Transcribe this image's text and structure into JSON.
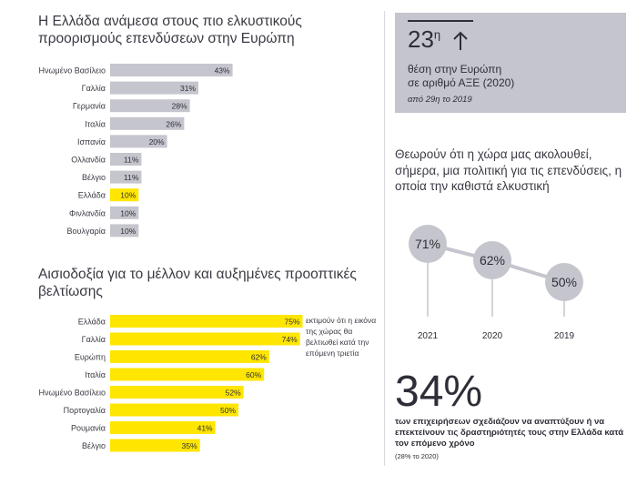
{
  "left_top": {
    "title_line1": "Η Ελλάδα ανάμεσα στους πιο ελκυστικούς",
    "title_line2": "προορισμούς επενδύσεων στην Ευρώπη"
  },
  "left_bottom": {
    "title_line1": "Αισιοδοξία για το μέλλον και αυξημένες προοπτικές",
    "title_line2": "βελτίωσης",
    "annotation": "εκτιμούν ότι η εικόνα της χώρας θα βελτιωθεί κατά την επόμενη τριετία"
  },
  "rank_box": {
    "rank_value": "23",
    "rank_suffix": "η",
    "line1": "θέση στην Ευρώπη",
    "line2": "σε αριθμό ΑΞΕ (2020)",
    "line3": "από 29η το 2019"
  },
  "attractiveness": {
    "title": "Θεωρούν ότι η χώρα μας ακολουθεί, σήμερα, μια πολιτική για τις επενδύσεις, η οποία την καθιστά ελκυστική"
  },
  "plans": {
    "big_value": "34%",
    "text": "των επιχειρήσεων σχεδιάζουν να αναπτύξουν ή να επεκτείνουν τις δραστηριότητές τους στην Ελλάδα κατά τον επόμενο χρόνο",
    "note": "(28% το 2020)"
  },
  "colors": {
    "gray_bar": "#c5c5cd",
    "highlight_bar": "#ffe600",
    "dark": "#2e2e38",
    "circle": "#c5c5cd",
    "line": "#c5c5cd"
  },
  "chart_data": [
    {
      "type": "bar",
      "orientation": "horizontal",
      "categories": [
        "Ηνωμένο Βασίλειο",
        "Γαλλία",
        "Γερμανία",
        "Ιταλία",
        "Ισπανία",
        "Ολλανδία",
        "Βέλγιο",
        "Ελλάδα",
        "Φινλανδία",
        "Βουλγαρία"
      ],
      "values": [
        43,
        31,
        28,
        26,
        20,
        11,
        11,
        10,
        10,
        10
      ],
      "value_labels": [
        "43%",
        "31%",
        "28%",
        "26%",
        "20%",
        "11%",
        "11%",
        "10%",
        "10%",
        "10%"
      ],
      "highlight": "Ελλάδα",
      "bar_color": "#c5c5cd",
      "highlight_color": "#ffe600"
    },
    {
      "type": "bar",
      "orientation": "horizontal",
      "categories": [
        "Ελλάδα",
        "Γαλλία",
        "Ευρώπη",
        "Ιταλία",
        "Ηνωμένο Βασίλειο",
        "Πορτογαλία",
        "Ρουμανία",
        "Βέλγιο"
      ],
      "values": [
        75,
        74,
        62,
        60,
        52,
        50,
        41,
        35
      ],
      "value_labels": [
        "75%",
        "74%",
        "62%",
        "60%",
        "52%",
        "50%",
        "41%",
        "35%"
      ],
      "bar_color": "#ffe600"
    },
    {
      "type": "line",
      "x": [
        "2021",
        "2020",
        "2019"
      ],
      "values": [
        71,
        62,
        50
      ],
      "value_labels": [
        "71%",
        "62%",
        "50%"
      ]
    }
  ]
}
